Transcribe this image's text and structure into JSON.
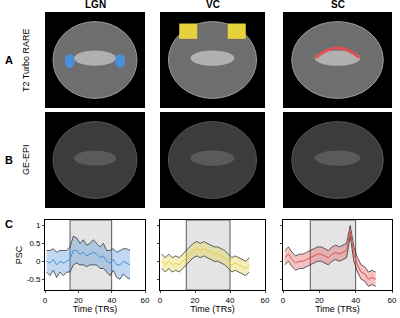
{
  "rows": [
    {
      "label": "A",
      "title": "T2 Turbo RARE"
    },
    {
      "label": "B",
      "title": "GE-EPI"
    },
    {
      "label": "C"
    }
  ],
  "chart_data": [
    {
      "type": "line",
      "title": "LGN",
      "xlabel": "Time (TRs)",
      "ylabel": "PSC",
      "x": [
        1,
        3,
        5,
        7,
        9,
        11,
        13,
        15,
        17,
        19,
        21,
        23,
        25,
        27,
        29,
        31,
        33,
        35,
        37,
        39,
        41,
        43,
        45,
        47,
        49,
        51
      ],
      "values": [
        0.0,
        -0.05,
        0.05,
        -0.1,
        0.0,
        -0.05,
        0.0,
        0.05,
        0.3,
        0.3,
        0.2,
        0.25,
        0.15,
        0.2,
        0.25,
        0.2,
        0.1,
        0.15,
        0.0,
        -0.05,
        0.05,
        -0.1,
        -0.1,
        0.0,
        -0.05,
        -0.1
      ],
      "error": [
        0.3,
        0.35,
        0.3,
        0.35,
        0.3,
        0.35,
        0.3,
        0.35,
        0.4,
        0.35,
        0.3,
        0.35,
        0.3,
        0.3,
        0.35,
        0.3,
        0.3,
        0.35,
        0.3,
        0.35,
        0.3,
        0.35,
        0.4,
        0.35,
        0.4,
        0.4
      ],
      "color": "#4a90d9",
      "stimulus": [
        15,
        40
      ],
      "xlim": [
        0,
        60
      ],
      "xticks": [
        0,
        20,
        40,
        60
      ],
      "ylim": [
        -0.8,
        1.15
      ],
      "yticks": [
        -0.5,
        0,
        0.5,
        1
      ]
    },
    {
      "type": "line",
      "title": "VC",
      "xlabel": "Time (TRs)",
      "x": [
        1,
        3,
        5,
        7,
        9,
        11,
        13,
        15,
        17,
        19,
        21,
        23,
        25,
        27,
        29,
        31,
        33,
        35,
        37,
        39,
        41,
        43,
        45,
        47,
        49,
        51
      ],
      "values": [
        0.0,
        -0.1,
        0.0,
        -0.1,
        -0.05,
        -0.1,
        0.0,
        0.1,
        0.2,
        0.3,
        0.35,
        0.3,
        0.35,
        0.3,
        0.25,
        0.2,
        0.2,
        0.15,
        0.1,
        0.0,
        -0.1,
        -0.05,
        -0.1,
        -0.15,
        -0.2,
        -0.1
      ],
      "error": [
        0.2,
        0.2,
        0.2,
        0.2,
        0.2,
        0.2,
        0.2,
        0.2,
        0.2,
        0.2,
        0.2,
        0.2,
        0.2,
        0.2,
        0.2,
        0.2,
        0.2,
        0.2,
        0.2,
        0.2,
        0.2,
        0.2,
        0.2,
        0.2,
        0.2,
        0.2
      ],
      "color": "#e6d23c",
      "stimulus": [
        15,
        40
      ],
      "tick_labels": "x",
      "xlim": [
        0,
        60
      ],
      "xticks": [
        0,
        20,
        40,
        60
      ],
      "ylim": [
        -0.8,
        1.15
      ],
      "yticks": [
        -0.5,
        0,
        0.5,
        1
      ]
    },
    {
      "type": "line",
      "title": "SC",
      "xlabel": "Time (TRs)",
      "x": [
        1,
        3,
        5,
        7,
        9,
        11,
        13,
        15,
        17,
        19,
        21,
        23,
        25,
        27,
        29,
        31,
        33,
        35,
        37,
        39,
        41,
        43,
        45,
        47,
        49,
        51
      ],
      "values": [
        0.1,
        0.2,
        0.05,
        -0.05,
        0.0,
        0.0,
        0.05,
        0.1,
        0.15,
        0.2,
        0.2,
        0.15,
        0.1,
        0.2,
        0.25,
        0.2,
        0.25,
        0.3,
        0.85,
        0.2,
        -0.1,
        -0.3,
        -0.35,
        -0.5,
        -0.45,
        -0.5
      ],
      "error": [
        0.2,
        0.2,
        0.2,
        0.2,
        0.2,
        0.2,
        0.2,
        0.2,
        0.2,
        0.2,
        0.2,
        0.2,
        0.2,
        0.2,
        0.2,
        0.2,
        0.2,
        0.2,
        0.15,
        0.2,
        0.2,
        0.2,
        0.2,
        0.2,
        0.2,
        0.2
      ],
      "color": "#e05050",
      "stimulus": [
        15,
        40
      ],
      "tick_labels": "x",
      "xlim": [
        0,
        60
      ],
      "xticks": [
        0,
        20,
        40,
        60
      ],
      "ylim": [
        -0.8,
        1.15
      ],
      "yticks": [
        -0.5,
        0,
        0.5,
        1
      ]
    }
  ]
}
